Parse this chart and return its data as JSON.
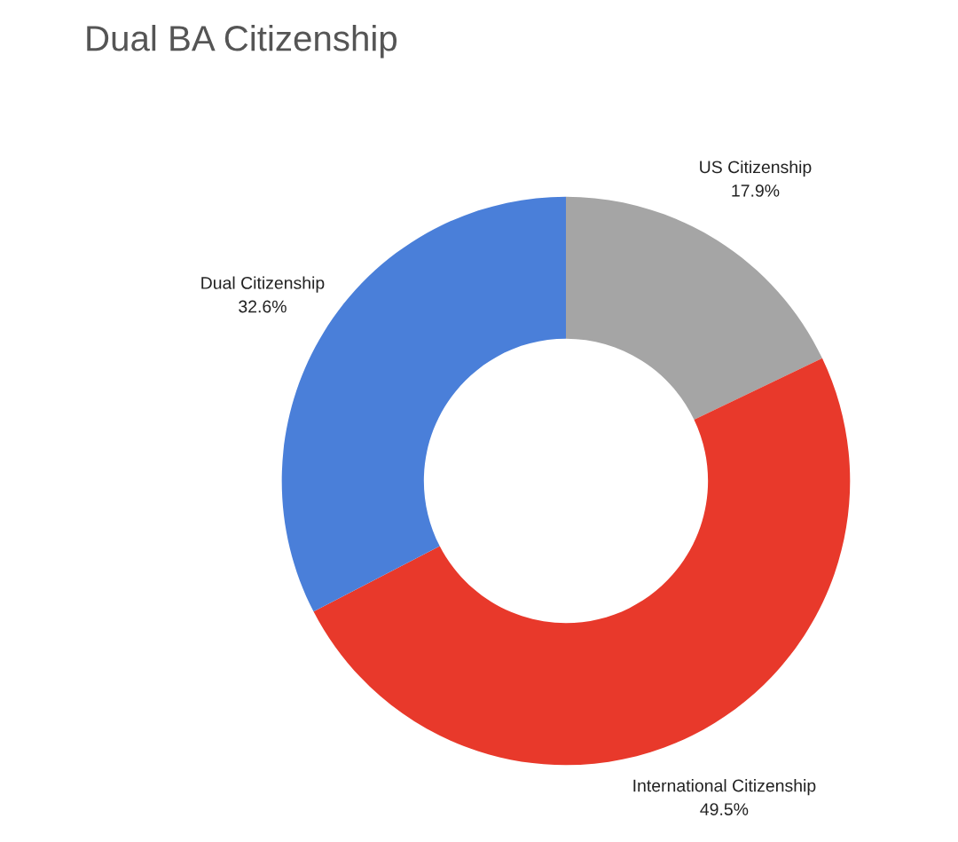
{
  "chart_data": {
    "type": "donut",
    "title": "Dual BA Citizenship",
    "categories": [
      "US Citizenship",
      "International Citizenship",
      "Dual Citizenship"
    ],
    "values": [
      17.9,
      49.5,
      32.6
    ],
    "colors": [
      "#a5a5a5",
      "#e8392b",
      "#4a7fd9"
    ],
    "value_labels": [
      "17.9%",
      "49.5%",
      "32.6%"
    ],
    "legend": false
  }
}
